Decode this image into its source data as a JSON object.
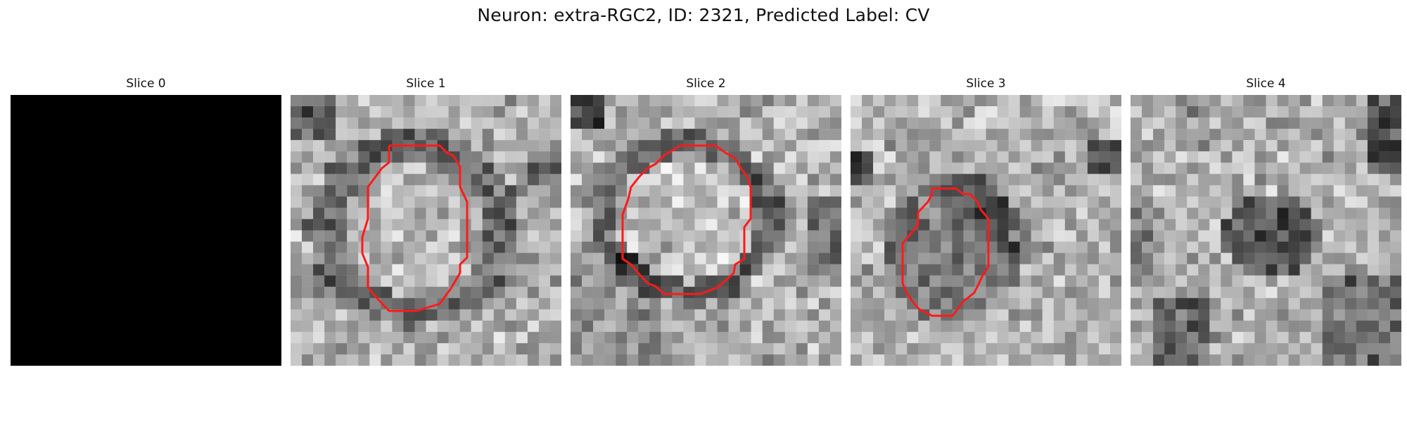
{
  "figure": {
    "title": "Neuron: extra-RGC2, ID: 2321, Predicted Label: CV"
  },
  "panels": [
    {
      "title": "Slice 0",
      "brightness": "black",
      "outline_visible": false
    },
    {
      "title": "Slice 1",
      "brightness": "grayscale",
      "outline_visible": true
    },
    {
      "title": "Slice 2",
      "brightness": "grayscale",
      "outline_visible": true
    },
    {
      "title": "Slice 3",
      "brightness": "grayscale",
      "outline_visible": true
    },
    {
      "title": "Slice 4",
      "brightness": "grayscale",
      "outline_visible": false
    }
  ],
  "colors": {
    "outline": "#ff1a1a",
    "background": "#ffffff",
    "black_slice": "#000000"
  }
}
